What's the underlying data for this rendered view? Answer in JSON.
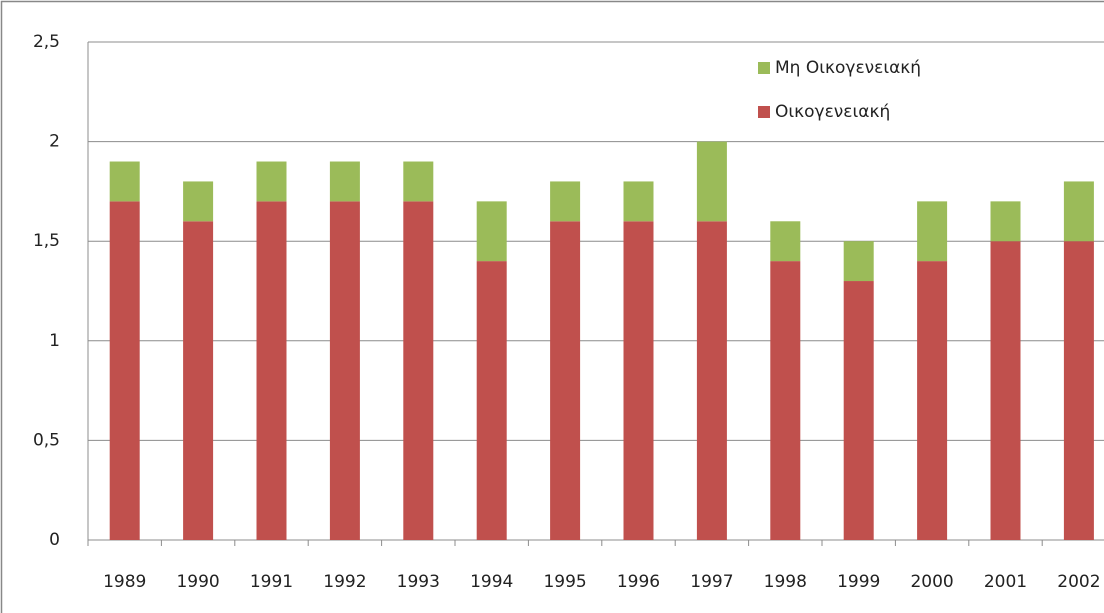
{
  "chart_data": {
    "type": "bar",
    "stacked": true,
    "categories": [
      "1989",
      "1990",
      "1991",
      "1992",
      "1993",
      "1994",
      "1995",
      "1996",
      "1997",
      "1998",
      "1999",
      "2000",
      "2001",
      "2002"
    ],
    "series": [
      {
        "name": "Οικογενειακή",
        "color": "#c0504d",
        "values": [
          1.7,
          1.6,
          1.7,
          1.7,
          1.7,
          1.4,
          1.6,
          1.6,
          1.6,
          1.4,
          1.3,
          1.4,
          1.5,
          1.5
        ]
      },
      {
        "name": "Μη Οικογενειακή",
        "color": "#9bbb59",
        "values": [
          0.2,
          0.2,
          0.2,
          0.2,
          0.2,
          0.3,
          0.2,
          0.2,
          0.4,
          0.2,
          0.2,
          0.3,
          0.2,
          0.3
        ]
      }
    ],
    "ylim": [
      0,
      2.5
    ],
    "yticks": [
      0,
      {
        "value": 0.5,
        "label": "0,5"
      },
      1,
      {
        "value": 1.5,
        "label": "1,5"
      },
      2,
      {
        "value": 2.5,
        "label": "2,5"
      }
    ],
    "grid": true,
    "legend": "top-right"
  }
}
